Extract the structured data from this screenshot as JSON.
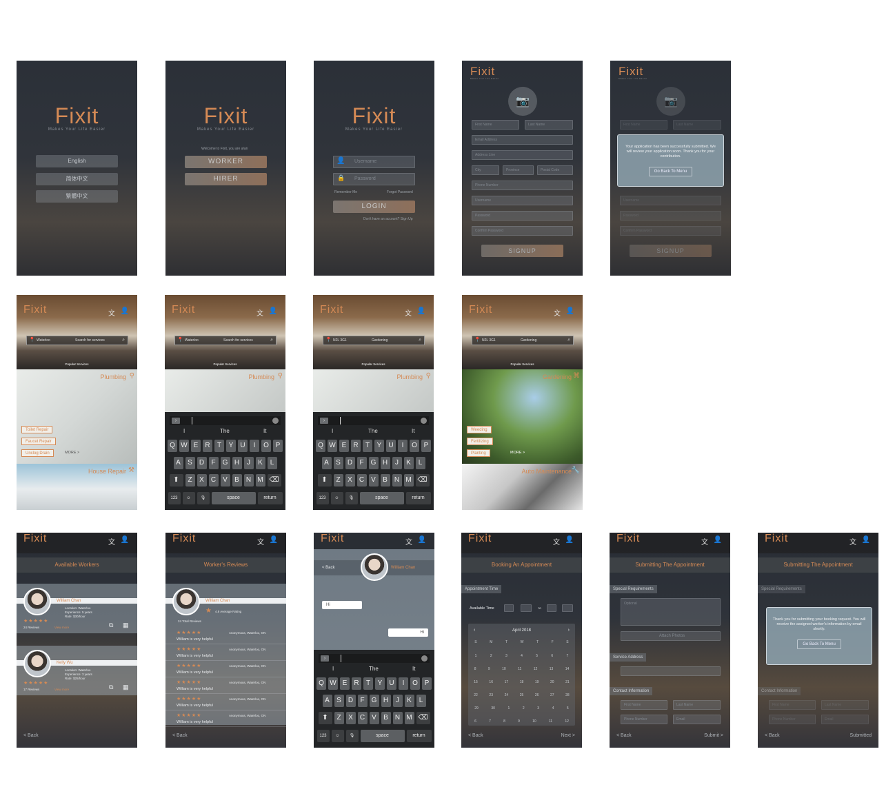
{
  "brand": {
    "logo": "Fixit",
    "tagline": "Makes Your Life Easier",
    "accent": "#d58a55"
  },
  "languages": [
    "English",
    "简体中文",
    "繁體中文"
  ],
  "role": {
    "welcome": "Welcome to Fixit, you are a/an",
    "worker": "WORKER",
    "hirer": "HIRER"
  },
  "login": {
    "username_placeholder": "Username",
    "password_placeholder": "Password",
    "remember": "Remember Me",
    "forgot": "Forgot Password",
    "button": "LOGIN",
    "signup_prompt": "Don't have an account? Sign Up"
  },
  "signup": {
    "first_name": "First Name",
    "last_name": "Last Name",
    "email": "Email Address",
    "address": "Address Line",
    "city": "City",
    "province": "Province",
    "postal": "Postal Code",
    "phone": "Phone Number",
    "username": "Username",
    "password": "Password",
    "confirm": "Confirm Password",
    "button": "SIGNUP"
  },
  "signup_modal": {
    "message": "Your application has been successfully submitted. We will review your application soon. Thank you for your contribution.",
    "button": "Go Back To Menu"
  },
  "home": {
    "location": "Waterloo",
    "location_alt": "N2L 3G1",
    "search_placeholder": "Search for services",
    "search_query": "Gardening",
    "popular": "Popular Services",
    "more": "MORE >",
    "categories": {
      "plumbing": {
        "title": "Plumbing",
        "items": [
          "Toilet Repair",
          "Faucet Repair",
          "Unclog Drain"
        ]
      },
      "house": {
        "title": "House Repair"
      },
      "gardening": {
        "title": "Gardening",
        "items": [
          "Weeding",
          "Fertilizing",
          "Planting"
        ]
      },
      "auto": {
        "title": "Auto Maintenance"
      }
    }
  },
  "keyboard": {
    "suggestions": [
      "I",
      "The",
      "It"
    ],
    "row1": [
      "Q",
      "W",
      "E",
      "R",
      "T",
      "Y",
      "U",
      "I",
      "O",
      "P"
    ],
    "row2": [
      "A",
      "S",
      "D",
      "F",
      "G",
      "H",
      "J",
      "K",
      "L"
    ],
    "row3": [
      "Z",
      "X",
      "C",
      "V",
      "B",
      "N",
      "M"
    ],
    "num": "123",
    "space": "space",
    "return": "return"
  },
  "workers": {
    "title": "Available Workers",
    "list": [
      {
        "name": "William Chan",
        "info1": "Location: Waterloo",
        "info2": "Experience: 5 years",
        "info3": "Rate: $30/hour",
        "stars": "★★★★★",
        "reviews": "24 Reviews",
        "more": "View more"
      },
      {
        "name": "Kelly Wu",
        "info1": "Location: Waterloo",
        "info2": "Experience: 3 years",
        "info3": "Rate: $25/hour",
        "stars": "★★★★★",
        "reviews": "17 Reviews",
        "more": "View more"
      }
    ]
  },
  "reviews": {
    "title": "Worker's Reviews",
    "name": "William Chan",
    "rating": "4.8 Average Rating",
    "summary": "24 Total Reviews",
    "items": [
      {
        "stars": "★★★★★",
        "text": "William is very helpful",
        "meta": "Anonymous, Waterloo, ON"
      },
      {
        "stars": "★★★★★",
        "text": "William is very helpful",
        "meta": "Anonymous, Waterloo, ON"
      },
      {
        "stars": "★★★★★",
        "text": "William is very helpful",
        "meta": "Anonymous, Waterloo, ON"
      },
      {
        "stars": "★★★★★",
        "text": "William is very helpful",
        "meta": "Anonymous, Waterloo, ON"
      },
      {
        "stars": "★★★★★",
        "text": "William is very helpful",
        "meta": "Anonymous, Waterloo, ON"
      },
      {
        "stars": "★★★★★",
        "text": "William is very helpful",
        "meta": "Anonymous, Waterloo, ON"
      }
    ]
  },
  "chat": {
    "back": "< Back",
    "name": "William Chan",
    "msg_in": "Hi",
    "msg_out": "Hi"
  },
  "booking": {
    "title": "Booking An Appointment",
    "section": "Appointment Time",
    "available": "Available Time",
    "to": "to",
    "month": "April 2018",
    "weekdays": [
      "S",
      "M",
      "T",
      "W",
      "T",
      "F",
      "S"
    ]
  },
  "submit": {
    "title": "Submitting The Appointment",
    "special": "Special Requirements",
    "optional": "Optional",
    "attach": "Attach Photos",
    "address": "Service Address",
    "contact": "Contact Information",
    "first": "First Name",
    "last": "Last Name",
    "phone": "Phone Number",
    "email": "Email",
    "submit_btn": "Submit >",
    "submitted": "Submitted"
  },
  "submit_modal": {
    "message": "Thank you for submitting your booking request. You will receive the assigned worker's information by email shortly.",
    "button": "Go Back To Menu"
  },
  "nav": {
    "back": "< Back",
    "next": "Next >"
  }
}
